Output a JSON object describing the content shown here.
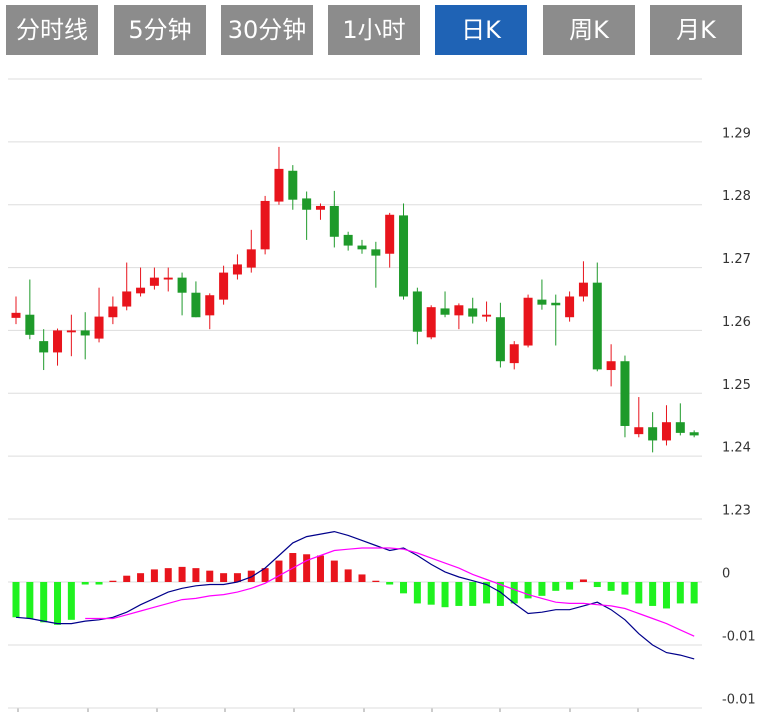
{
  "tabs": [
    "分时线",
    "5分钟",
    "30分钟",
    "1小时",
    "日K",
    "周K",
    "月K"
  ],
  "active_tab": "日K",
  "chart_data": [
    {
      "type": "candlestick",
      "up_color": "#e8141c",
      "down_color": "#1e9a2a",
      "ylim": [
        1.23,
        1.3
      ],
      "yticks": [
        1.23,
        1.24,
        1.25,
        1.26,
        1.27,
        1.28,
        1.29
      ],
      "grid": true,
      "open": [
        1.262,
        1.2625,
        1.2583,
        1.2565,
        1.2597,
        1.26,
        1.2587,
        1.2621,
        1.2638,
        1.2659,
        1.2671,
        1.2681,
        1.2684,
        1.266,
        1.2624,
        1.2649,
        1.2689,
        1.27,
        1.2729,
        1.2805,
        1.2854,
        1.281,
        1.2792,
        1.2798,
        1.2752,
        1.2735,
        1.2729,
        1.2722,
        1.2783,
        1.2662,
        1.2589,
        1.2635,
        1.2624,
        1.2635,
        1.2622,
        1.2621,
        1.2548,
        1.2576,
        1.2649,
        1.2644,
        1.2621,
        1.2654,
        1.2676,
        1.2537,
        1.2551,
        1.2435,
        1.2446,
        1.2425,
        1.2454,
        1.2438
      ],
      "high": [
        1.2654,
        1.2681,
        1.2602,
        1.2603,
        1.2625,
        1.2629,
        1.2668,
        1.2654,
        1.2708,
        1.27,
        1.27,
        1.27,
        1.2692,
        1.2678,
        1.2659,
        1.2703,
        1.2721,
        1.276,
        1.2814,
        1.2892,
        1.2863,
        1.2821,
        1.2802,
        1.2822,
        1.2757,
        1.2744,
        1.2741,
        1.2787,
        1.2802,
        1.2668,
        1.264,
        1.2662,
        1.2643,
        1.2652,
        1.2646,
        1.2644,
        1.2583,
        1.2657,
        1.2681,
        1.2657,
        1.2662,
        1.271,
        1.2708,
        1.2578,
        1.256,
        1.2494,
        1.247,
        1.2481,
        1.2484,
        1.2441
      ],
      "low": [
        1.261,
        1.2586,
        1.2537,
        1.2544,
        1.2559,
        1.2554,
        1.2581,
        1.261,
        1.2632,
        1.2654,
        1.2665,
        1.2662,
        1.2624,
        1.2621,
        1.2602,
        1.2641,
        1.2681,
        1.2692,
        1.2721,
        1.28,
        1.2792,
        1.2744,
        1.2776,
        1.2732,
        1.2727,
        1.2722,
        1.2668,
        1.27,
        1.2649,
        1.2578,
        1.2586,
        1.2621,
        1.2602,
        1.2611,
        1.2614,
        1.2541,
        1.2538,
        1.2573,
        1.2633,
        1.2576,
        1.2614,
        1.2646,
        1.2535,
        1.2511,
        1.243,
        1.243,
        1.2406,
        1.2417,
        1.2433,
        1.243
      ],
      "close": [
        1.2628,
        1.2593,
        1.2565,
        1.26,
        1.26,
        1.2592,
        1.2622,
        1.2638,
        1.2662,
        1.2668,
        1.2684,
        1.2684,
        1.266,
        1.2621,
        1.2656,
        1.2692,
        1.2705,
        1.2729,
        1.2806,
        1.2857,
        1.2808,
        1.2792,
        1.2798,
        1.2749,
        1.2735,
        1.2729,
        1.2719,
        1.2784,
        1.2654,
        1.2598,
        1.2637,
        1.2625,
        1.264,
        1.2622,
        1.2625,
        1.2551,
        1.2578,
        1.2652,
        1.2641,
        1.264,
        1.2654,
        1.2676,
        1.2538,
        1.2551,
        1.2448,
        1.2446,
        1.2425,
        1.2454,
        1.2437,
        1.2433
      ]
    },
    {
      "type": "macd",
      "up_color": "#e8141c",
      "down_color": "#1ff21f",
      "ylim": [
        -0.01,
        0.005
      ],
      "yticks": [
        0,
        {
          "value": -0.005,
          "label": "-0.01"
        },
        {
          "value": -0.01,
          "label": "-0.01"
        }
      ],
      "grid": true,
      "values": [
        -0.0028,
        -0.0029,
        -0.0032,
        -0.0034,
        -0.003,
        -0.0002,
        -0.0002,
        0.0001,
        0.0005,
        0.0007,
        0.001,
        0.0011,
        0.0012,
        0.0011,
        0.0009,
        0.0007,
        0.0007,
        0.0009,
        0.0011,
        0.0017,
        0.0023,
        0.0022,
        0.0021,
        0.0017,
        0.001,
        0.0006,
        0.0001,
        -0.0002,
        -0.0009,
        -0.0017,
        -0.0018,
        -0.002,
        -0.0019,
        -0.0019,
        -0.0017,
        -0.0019,
        -0.0017,
        -0.0013,
        -0.0011,
        -0.0007,
        -0.0006,
        0.0002,
        -0.0004,
        -0.0007,
        -0.001,
        -0.0017,
        -0.0019,
        -0.0021,
        -0.0017,
        -0.0017
      ],
      "series": [
        {
          "color": "#00008b",
          "values": [
            -0.0028,
            -0.0029,
            -0.0031,
            -0.0033,
            -0.0033,
            -0.0031,
            -0.003,
            -0.0028,
            -0.0024,
            -0.0018,
            -0.0013,
            -0.0008,
            -0.0005,
            -0.0003,
            -0.0002,
            -0.0002,
            0.0,
            0.0004,
            0.0011,
            0.0021,
            0.0031,
            0.0036,
            0.0038,
            0.004,
            0.0037,
            0.0033,
            0.0029,
            0.0025,
            0.0027,
            0.0021,
            0.0014,
            0.0008,
            0.0004,
            0.0001,
            -0.0002,
            -0.0008,
            -0.0017,
            -0.0025,
            -0.0024,
            -0.0022,
            -0.0022,
            -0.0019,
            -0.0016,
            -0.0022,
            -0.003,
            -0.0041,
            -0.005,
            -0.0056,
            -0.0058,
            -0.0061
          ]
        },
        {
          "color": "#ff00ff",
          "values": [
            null,
            null,
            null,
            null,
            null,
            -0.0029,
            -0.0029,
            -0.0029,
            -0.0026,
            -0.0023,
            -0.002,
            -0.0017,
            -0.0014,
            -0.0013,
            -0.0011,
            -0.001,
            -0.0008,
            -0.0005,
            -0.0001,
            0.0005,
            0.0011,
            0.0017,
            0.0021,
            0.0025,
            0.0026,
            0.0027,
            0.0027,
            0.0027,
            0.0026,
            0.0023,
            0.0019,
            0.0015,
            0.0011,
            0.0006,
            0.0002,
            -0.0002,
            -0.0006,
            -0.001,
            -0.0013,
            -0.0016,
            -0.0017,
            -0.0017,
            -0.0018,
            -0.0019,
            -0.0021,
            -0.0025,
            -0.0029,
            -0.0033,
            -0.0038,
            -0.0043
          ]
        }
      ]
    }
  ]
}
